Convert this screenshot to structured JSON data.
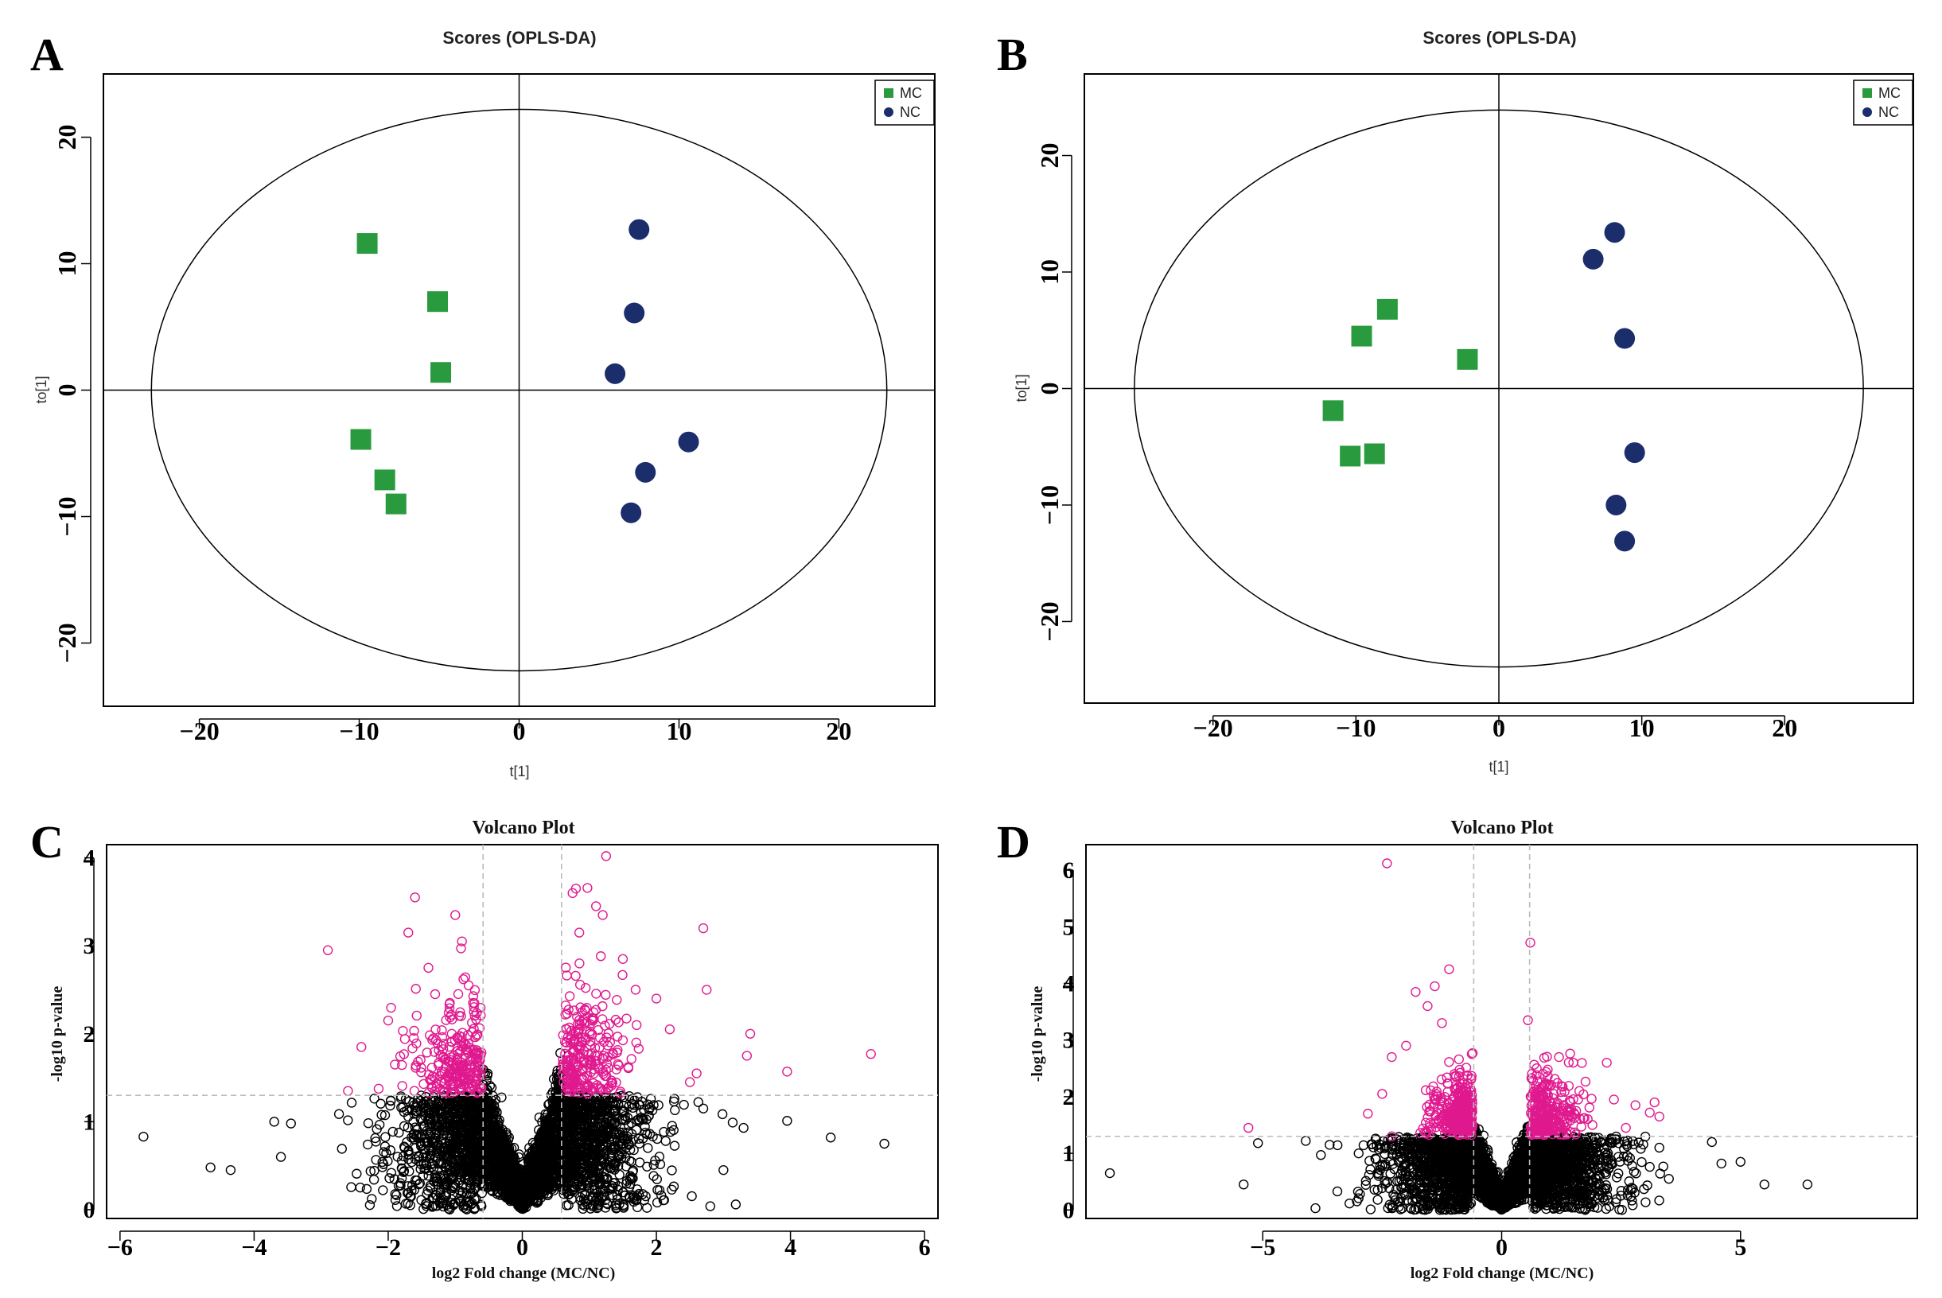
{
  "colors": {
    "mc": "#2a9a3e",
    "nc": "#1b2d6b",
    "sig": "#e0198f",
    "nonsig": "#000000",
    "guide": "#bbbbbb"
  },
  "chart_data": [
    {
      "id": "A",
      "type": "scatter",
      "panel_label": "A",
      "title": "Scores (OPLS-DA)",
      "xlabel": "t[1]",
      "ylabel": "to[1]",
      "xlim": [
        -26,
        26
      ],
      "ylim": [
        -25,
        25
      ],
      "xticks": [
        -20,
        -10,
        0,
        10,
        20
      ],
      "yticks": [
        -20,
        -10,
        0,
        10,
        20
      ],
      "ellipse": {
        "rx": 23,
        "ry": 22.2
      },
      "legend": {
        "position": "top-right",
        "entries": [
          {
            "label": "MC",
            "shape": "square"
          },
          {
            "label": "NC",
            "shape": "circle"
          }
        ]
      },
      "series": [
        {
          "name": "MC",
          "shape": "square",
          "points": [
            [
              -9.5,
              11.6
            ],
            [
              -5.1,
              7.0
            ],
            [
              -4.9,
              1.4
            ],
            [
              -9.9,
              -3.9
            ],
            [
              -8.4,
              -7.1
            ],
            [
              -7.7,
              -9.0
            ]
          ]
        },
        {
          "name": "NC",
          "shape": "circle",
          "points": [
            [
              7.5,
              12.7
            ],
            [
              7.2,
              6.1
            ],
            [
              6.0,
              1.3
            ],
            [
              10.6,
              -4.1
            ],
            [
              7.9,
              -6.5
            ],
            [
              7.0,
              -9.7
            ]
          ]
        }
      ]
    },
    {
      "id": "B",
      "type": "scatter",
      "panel_label": "B",
      "title": "Scores (OPLS-DA)",
      "xlabel": "t[1]",
      "ylabel": "to[1]",
      "xlim": [
        -29,
        29
      ],
      "ylim": [
        -27,
        27
      ],
      "xticks": [
        -20,
        -10,
        0,
        10,
        20
      ],
      "yticks": [
        -20,
        -10,
        0,
        10,
        20
      ],
      "ellipse": {
        "rx": 25.5,
        "ry": 23.9
      },
      "legend": {
        "position": "top-right",
        "entries": [
          {
            "label": "MC",
            "shape": "square"
          },
          {
            "label": "NC",
            "shape": "circle"
          }
        ]
      },
      "series": [
        {
          "name": "MC",
          "shape": "square",
          "points": [
            [
              -7.8,
              6.8
            ],
            [
              -9.6,
              4.5
            ],
            [
              -2.2,
              2.5
            ],
            [
              -11.6,
              -1.9
            ],
            [
              -10.4,
              -5.8
            ],
            [
              -8.7,
              -5.6
            ]
          ]
        },
        {
          "name": "NC",
          "shape": "circle",
          "points": [
            [
              8.1,
              13.4
            ],
            [
              6.6,
              11.1
            ],
            [
              8.8,
              4.3
            ],
            [
              9.5,
              -5.5
            ],
            [
              8.2,
              -10.0
            ],
            [
              8.8,
              -13.1
            ]
          ]
        }
      ]
    },
    {
      "id": "C",
      "type": "scatter",
      "panel_label": "C",
      "title": "Volcano Plot",
      "xlabel": "log2 Fold change (MC/NC)",
      "ylabel": "-log10 p-value",
      "xlim": [
        -6.2,
        6.2
      ],
      "ylim": [
        -0.1,
        4.15
      ],
      "xticks": [
        -6,
        -4,
        -2,
        0,
        2,
        4,
        6
      ],
      "yticks": [
        0,
        1,
        2,
        3,
        4
      ],
      "fc_threshold": 0.585,
      "p_threshold": 1.3,
      "background_cloud": {
        "n": 3600,
        "seed": 17,
        "spread": 0.85,
        "slope": 2.3,
        "max_y": 2.9
      },
      "series": [
        {
          "name": "",
          "color": "sig",
          "points": [
            [
              -2.9,
              2.95
            ],
            [
              -1.6,
              3.55
            ],
            [
              -1.7,
              3.15
            ],
            [
              -1.0,
              3.35
            ],
            [
              -0.9,
              3.05
            ],
            [
              -1.4,
              2.75
            ],
            [
              -0.8,
              2.55
            ],
            [
              -2.0,
              2.15
            ],
            [
              -2.4,
              1.85
            ],
            [
              -2.6,
              1.35
            ],
            [
              -1.9,
              1.65
            ],
            [
              -1.3,
              2.45
            ],
            [
              0.8,
              3.65
            ],
            [
              0.75,
              3.6
            ],
            [
              1.25,
              4.02
            ],
            [
              1.1,
              3.45
            ],
            [
              1.2,
              3.35
            ],
            [
              0.85,
              3.15
            ],
            [
              1.5,
              2.85
            ],
            [
              2.7,
              3.2
            ],
            [
              2.75,
              2.5
            ],
            [
              2.0,
              2.4
            ],
            [
              2.2,
              2.05
            ],
            [
              3.4,
              2.0
            ],
            [
              3.35,
              1.75
            ],
            [
              2.6,
              1.55
            ],
            [
              3.95,
              1.57
            ],
            [
              5.2,
              1.77
            ],
            [
              2.5,
              1.45
            ],
            [
              1.7,
              1.9
            ]
          ],
          "cloud": {
            "n": 500,
            "seed": 29
          }
        },
        {
          "name": "",
          "color": "nonsig",
          "points": [
            [
              -5.65,
              0.83
            ],
            [
              -4.65,
              0.48
            ],
            [
              -4.35,
              0.45
            ],
            [
              -3.7,
              1.0
            ],
            [
              -3.6,
              0.6
            ],
            [
              -3.45,
              0.98
            ],
            [
              3.95,
              1.01
            ],
            [
              4.6,
              0.82
            ],
            [
              5.4,
              0.75
            ],
            [
              3.0,
              0.45
            ],
            [
              3.3,
              0.93
            ],
            [
              2.7,
              1.15
            ]
          ]
        }
      ]
    },
    {
      "id": "D",
      "type": "scatter",
      "panel_label": "D",
      "title": "Volcano Plot",
      "xlabel": "log2 Fold change (MC/NC)",
      "ylabel": "-log10 p-value",
      "xlim": [
        -8.7,
        8.7
      ],
      "ylim": [
        -0.15,
        6.45
      ],
      "xticks": [
        -5,
        0,
        5
      ],
      "yticks": [
        0,
        1,
        2,
        3,
        4,
        5,
        6
      ],
      "fc_threshold": 0.585,
      "p_threshold": 1.3,
      "background_cloud": {
        "n": 3600,
        "seed": 41,
        "spread": 1.05,
        "slope": 2.2,
        "max_y": 2.8
      },
      "series": [
        {
          "name": "",
          "color": "sig",
          "points": [
            [
              -2.4,
              6.12
            ],
            [
              -1.8,
              3.85
            ],
            [
              -1.1,
              4.25
            ],
            [
              -1.4,
              3.95
            ],
            [
              -1.55,
              3.6
            ],
            [
              -1.25,
              3.3
            ],
            [
              -2.0,
              2.9
            ],
            [
              -2.3,
              2.7
            ],
            [
              -2.5,
              2.05
            ],
            [
              -2.8,
              1.7
            ],
            [
              -5.3,
              1.45
            ],
            [
              -2.3,
              1.3
            ],
            [
              0.6,
              4.72
            ],
            [
              0.55,
              3.35
            ],
            [
              1.2,
              2.7
            ],
            [
              1.5,
              2.6
            ],
            [
              2.2,
              2.6
            ],
            [
              2.35,
              1.95
            ],
            [
              2.8,
              1.85
            ],
            [
              3.2,
              1.9
            ],
            [
              3.1,
              1.72
            ],
            [
              3.3,
              1.65
            ],
            [
              2.6,
              1.45
            ],
            [
              1.9,
              1.5
            ],
            [
              1.6,
              1.95
            ]
          ],
          "cloud": {
            "n": 560,
            "seed": 53
          }
        },
        {
          "name": "",
          "color": "nonsig",
          "points": [
            [
              -8.2,
              0.65
            ],
            [
              -5.1,
              1.18
            ],
            [
              -5.4,
              0.45
            ],
            [
              -4.1,
              1.22
            ],
            [
              -3.6,
              1.15
            ],
            [
              4.4,
              1.2
            ],
            [
              4.6,
              0.82
            ],
            [
              5.0,
              0.85
            ],
            [
              5.5,
              0.45
            ],
            [
              6.4,
              0.45
            ],
            [
              3.5,
              0.55
            ],
            [
              3.3,
              1.1
            ]
          ]
        }
      ]
    }
  ]
}
